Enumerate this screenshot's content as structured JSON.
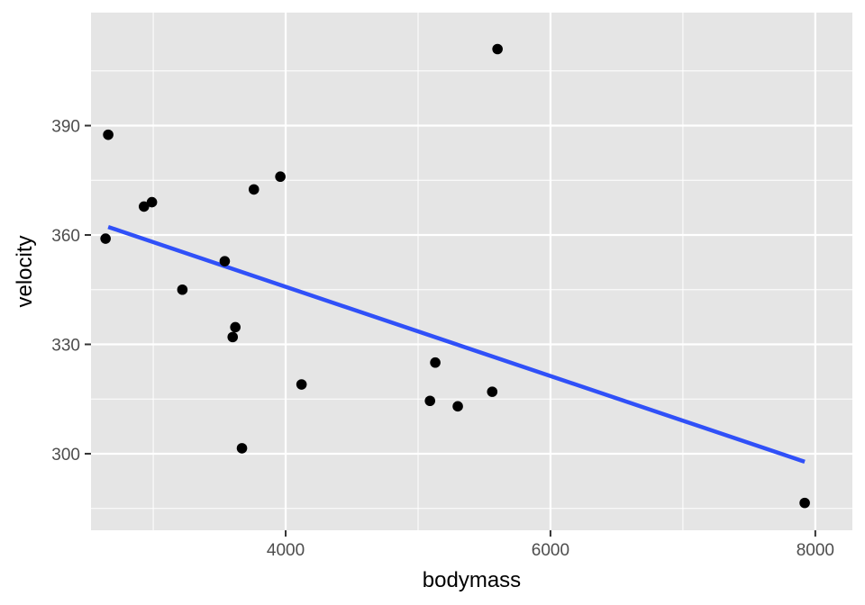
{
  "chart_data": {
    "type": "scatter",
    "xlabel": "bodymass",
    "ylabel": "velocity",
    "xlim": [
      2530,
      8280
    ],
    "ylim": [
      279,
      421
    ],
    "x_ticks": [
      4000,
      6000,
      8000
    ],
    "x_tick_labels": [
      "4000",
      "6000",
      "8000"
    ],
    "y_ticks": [
      300,
      330,
      360,
      390
    ],
    "y_tick_labels": [
      "300",
      "330",
      "360",
      "390"
    ],
    "grid": true,
    "points": [
      {
        "x": 2660,
        "y": 387.5
      },
      {
        "x": 2640,
        "y": 359
      },
      {
        "x": 2930,
        "y": 367.8
      },
      {
        "x": 2990,
        "y": 369
      },
      {
        "x": 3220,
        "y": 345
      },
      {
        "x": 3540,
        "y": 352.8
      },
      {
        "x": 3600,
        "y": 332
      },
      {
        "x": 3620,
        "y": 334.7
      },
      {
        "x": 3670,
        "y": 301.5
      },
      {
        "x": 3760,
        "y": 372.5
      },
      {
        "x": 3960,
        "y": 376
      },
      {
        "x": 4120,
        "y": 319
      },
      {
        "x": 5090,
        "y": 314.5
      },
      {
        "x": 5130,
        "y": 325
      },
      {
        "x": 5300,
        "y": 313
      },
      {
        "x": 5560,
        "y": 317
      },
      {
        "x": 5600,
        "y": 411
      },
      {
        "x": 7920,
        "y": 286.5
      }
    ],
    "fit_line": {
      "x": [
        2660,
        7920
      ],
      "y": [
        362.2,
        297.8
      ]
    },
    "colors": {
      "panel": "#e5e5e5",
      "grid": "#ffffff",
      "points": "#000000",
      "fit_line": "#3050f8",
      "tick_label": "#4d4d4d"
    }
  }
}
